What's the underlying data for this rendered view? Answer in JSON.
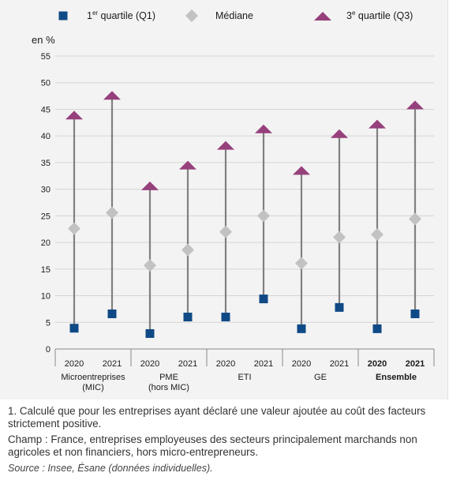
{
  "chart_data": {
    "type": "scatter",
    "ylabel": "en %",
    "ylim": [
      0,
      55
    ],
    "yticks": [
      0,
      5,
      10,
      15,
      20,
      25,
      30,
      35,
      40,
      45,
      50,
      55
    ],
    "grid": true,
    "legend_position": "top",
    "legend": [
      {
        "label_pre": "1",
        "label_sup": "er",
        "label_post": " quartile (Q1)",
        "shape": "square",
        "color": "#0f4a86"
      },
      {
        "label_pre": "Médiane",
        "label_sup": "",
        "label_post": "",
        "shape": "diamond",
        "color": "#c2c2c2"
      },
      {
        "label_pre": "3",
        "label_sup": "e",
        "label_post": " quartile (Q3)",
        "shape": "triangle",
        "color": "#96407c"
      }
    ],
    "groups": [
      {
        "label": [
          "Microentreprises",
          "(MIC)"
        ],
        "bold": false
      },
      {
        "label": [
          "PME",
          "(hors MIC)"
        ],
        "bold": false
      },
      {
        "label": [
          "ETI"
        ],
        "bold": false
      },
      {
        "label": [
          "GE"
        ],
        "bold": false
      },
      {
        "label": [
          "Ensemble"
        ],
        "bold": true
      }
    ],
    "categories": [
      "2020",
      "2021",
      "2020",
      "2021",
      "2020",
      "2021",
      "2020",
      "2021",
      "2020",
      "2021"
    ],
    "series": [
      {
        "name": "1er quartile (Q1)",
        "values": [
          3.9,
          6.6,
          2.9,
          6.0,
          6.0,
          9.4,
          3.8,
          7.8,
          3.8,
          6.6
        ]
      },
      {
        "name": "Médiane",
        "values": [
          22.6,
          25.6,
          15.7,
          18.6,
          22.0,
          25.0,
          16.1,
          21.0,
          21.5,
          24.4
        ]
      },
      {
        "name": "3e quartile (Q3)",
        "values": [
          44.0,
          47.7,
          30.7,
          34.6,
          38.3,
          41.4,
          33.6,
          40.5,
          42.3,
          45.9
        ]
      }
    ],
    "colors": {
      "q1": "#0f4a86",
      "median": "#c2c2c2",
      "q3": "#96407c",
      "whisker": "#808080",
      "grid": "#d4d4d4",
      "axis": "#888888"
    }
  },
  "notes": {
    "footnote": "1. Calculé que pour les entreprises ayant déclaré une valeur ajoutée au coût des facteurs strictement positive.",
    "champ": "Champ : France, entreprises employeuses des secteurs principalement marchands non agricoles et non financiers, hors micro-entrepreneurs.",
    "source": "Source : Insee, Ésane (données individuelles)."
  }
}
